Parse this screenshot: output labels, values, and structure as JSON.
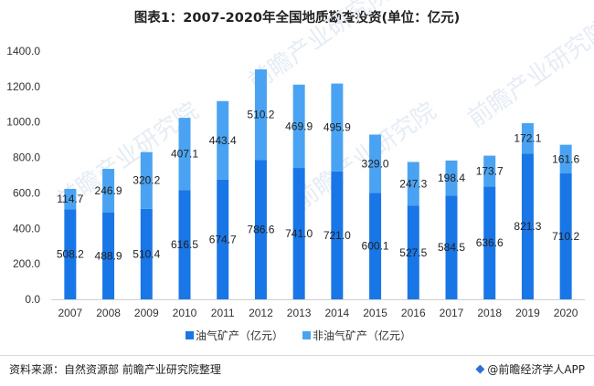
{
  "title": "图表1：2007-2020年全国地质勘查投资(单位：亿元)",
  "footer": {
    "source": "资料来源：自然资源部 前瞻产业研究院整理",
    "brand": "@前瞻经济学人APP"
  },
  "watermark": {
    "text": "前瞻产业研究院"
  },
  "colors": {
    "oil_gas": "#1976e6",
    "non_oil_gas": "#4aa3f2"
  },
  "chart_data": {
    "type": "bar",
    "stacked": true,
    "categories": [
      "2007",
      "2008",
      "2009",
      "2010",
      "2011",
      "2012",
      "2013",
      "2014",
      "2015",
      "2016",
      "2017",
      "2018",
      "2019",
      "2020"
    ],
    "series": [
      {
        "name": "油气矿产（亿元）",
        "values": [
          508.2,
          488.9,
          510.4,
          616.5,
          674.7,
          786.6,
          741.0,
          721.0,
          600.1,
          527.5,
          584.5,
          636.6,
          821.3,
          710.2
        ]
      },
      {
        "name": "非油气矿产（亿元）",
        "values": [
          114.7,
          246.9,
          320.2,
          407.1,
          443.4,
          510.2,
          469.9,
          495.9,
          329.0,
          247.3,
          198.4,
          173.7,
          172.1,
          161.6
        ]
      }
    ],
    "ylim": [
      0,
      1400
    ],
    "yticks": [
      "0.0",
      "200.0",
      "400.0",
      "600.0",
      "800.0",
      "1000.0",
      "1200.0",
      "1400.0"
    ],
    "legend_position": "bottom",
    "grid": false
  }
}
